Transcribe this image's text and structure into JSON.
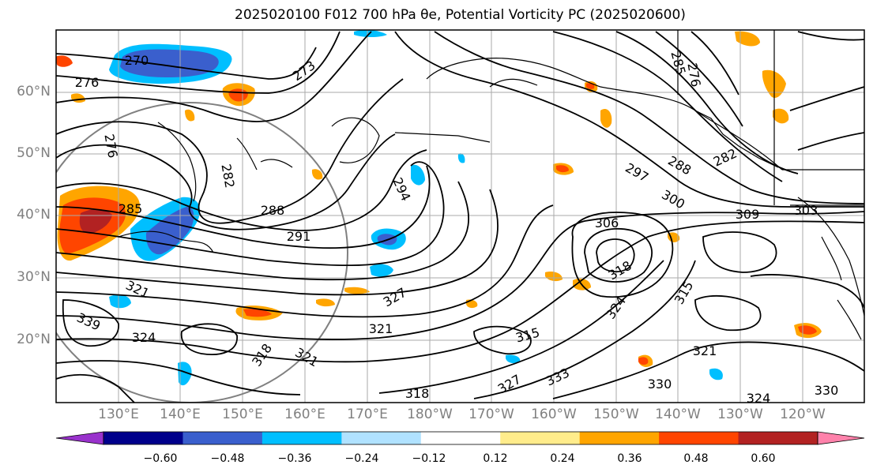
{
  "title": "2025020100 F012 700 hPa θe, Potential Vorticity PC (2025020600)",
  "lat_labels": [
    "60°N",
    "50°N",
    "40°N",
    "30°N",
    "20°N"
  ],
  "lon_labels": [
    "130°E",
    "140°E",
    "150°E",
    "160°E",
    "170°E",
    "180°W",
    "170°W",
    "160°W",
    "150°W",
    "140°W",
    "130°W",
    "120°W"
  ],
  "colorbar": {
    "ticks": [
      "−0.60",
      "−0.48",
      "−0.36",
      "−0.24",
      "−0.12",
      "0.12",
      "0.24",
      "0.36",
      "0.48",
      "0.60"
    ],
    "colors": [
      "#9932cc",
      "#00008b",
      "#3a5fcd",
      "#00bfff",
      "#b0e2ff",
      "#ffffff",
      "#ffec8b",
      "#ffa500",
      "#ff4500",
      "#b22222",
      "#ff82ab"
    ]
  },
  "contour_labels": [
    {
      "text": "270"
    },
    {
      "text": "276"
    },
    {
      "text": "273"
    },
    {
      "text": "276"
    },
    {
      "text": "282"
    },
    {
      "text": "285"
    },
    {
      "text": "288"
    },
    {
      "text": "291"
    },
    {
      "text": "294"
    },
    {
      "text": "285"
    },
    {
      "text": "276"
    },
    {
      "text": "297"
    },
    {
      "text": "288"
    },
    {
      "text": "282"
    },
    {
      "text": "300"
    },
    {
      "text": "306"
    },
    {
      "text": "309"
    },
    {
      "text": "303"
    },
    {
      "text": "318"
    },
    {
      "text": "321"
    },
    {
      "text": "339"
    },
    {
      "text": "324"
    },
    {
      "text": "318"
    },
    {
      "text": "321"
    },
    {
      "text": "315"
    },
    {
      "text": "327"
    },
    {
      "text": "315"
    },
    {
      "text": "324"
    },
    {
      "text": "321"
    },
    {
      "text": "327"
    },
    {
      "text": "333"
    },
    {
      "text": "330"
    },
    {
      "text": "318"
    },
    {
      "text": "324"
    },
    {
      "text": "330"
    },
    {
      "text": "321"
    }
  ]
}
